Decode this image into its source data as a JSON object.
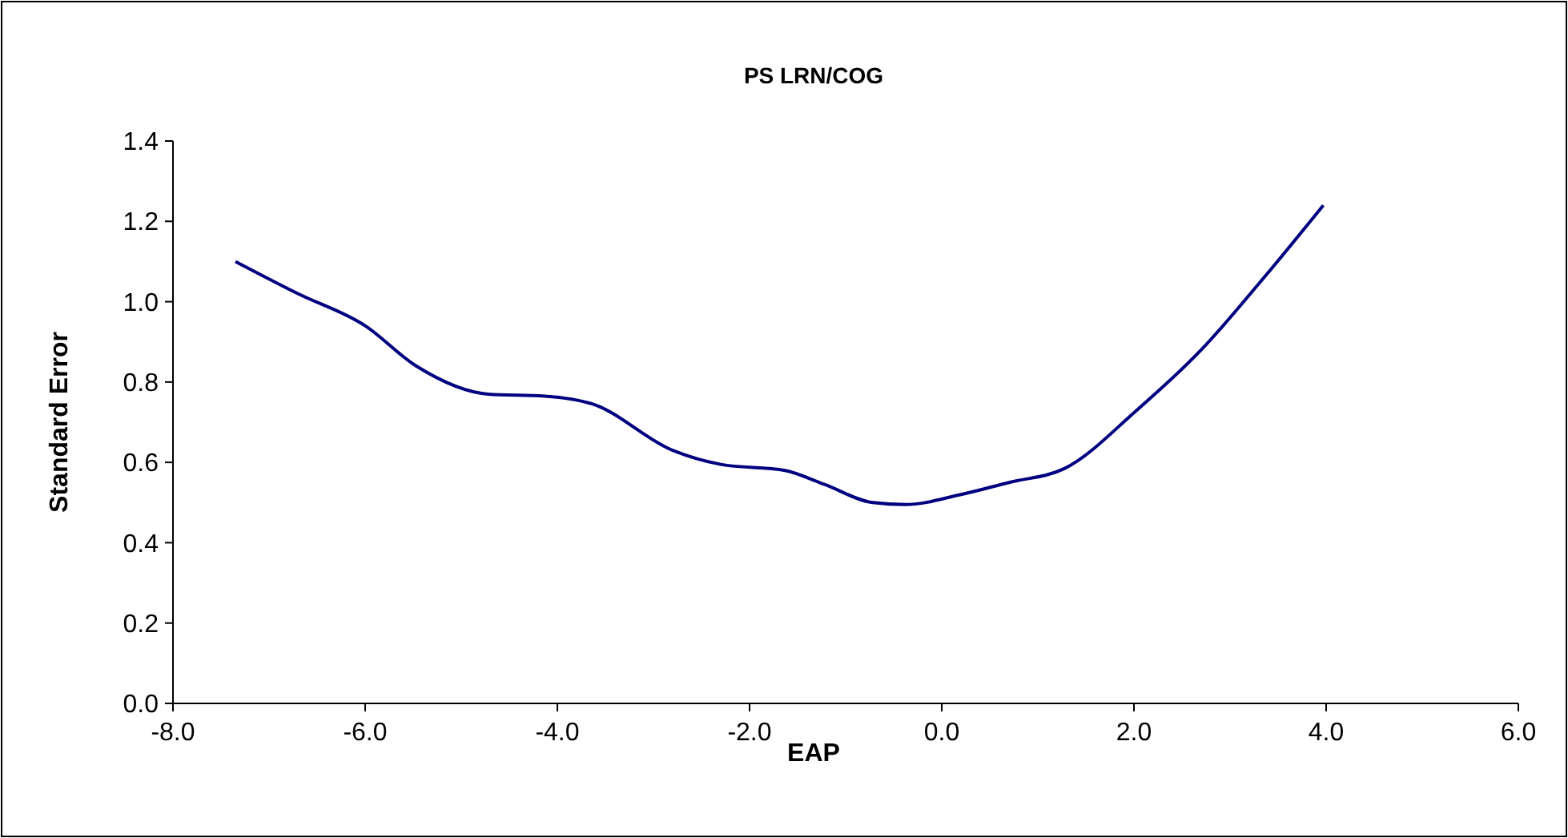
{
  "chart_data": {
    "type": "line",
    "title": "PS LRN/COG",
    "xlabel": "EAP",
    "ylabel": "Standard Error",
    "x": [
      -7.35,
      -6.7,
      -6.0,
      -5.47,
      -4.72,
      -4.13,
      -3.63,
      -2.8,
      -2.3,
      -1.63,
      -1.22,
      -0.72,
      -0.38,
      0.2,
      0.7,
      1.28,
      2.03,
      2.7,
      3.37,
      3.97
    ],
    "series": [
      {
        "color": "#000080",
        "values": [
          1.1,
          1.02,
          0.94,
          0.84,
          0.77,
          0.765,
          0.745,
          0.63,
          0.595,
          0.58,
          0.545,
          0.5,
          0.495,
          0.52,
          0.55,
          0.585,
          0.73,
          0.88,
          1.065,
          1.24
        ]
      }
    ],
    "xlim": [
      -8,
      6
    ],
    "xticks": [
      {
        "value": -8,
        "label": "-8.0"
      },
      {
        "value": -6,
        "label": "-6.0"
      },
      {
        "value": -4,
        "label": "-4.0"
      },
      {
        "value": -2,
        "label": "-2.0"
      },
      {
        "value": 0,
        "label": "0.0"
      },
      {
        "value": 2,
        "label": "2.0"
      },
      {
        "value": 4,
        "label": "4.0"
      },
      {
        "value": 6,
        "label": "6.0"
      }
    ],
    "ylim": [
      0,
      1.4
    ],
    "yticks": [
      {
        "value": 0,
        "label": "0.0"
      },
      {
        "value": 0.2,
        "label": "0.2"
      },
      {
        "value": 0.4,
        "label": "0.4"
      },
      {
        "value": 0.6,
        "label": "0.6"
      },
      {
        "value": 0.8,
        "label": "0.8"
      },
      {
        "value": 1,
        "label": "1.0"
      },
      {
        "value": 1.2,
        "label": "1.2"
      },
      {
        "value": 1.4,
        "label": "1.4"
      }
    ],
    "grid": false,
    "marker": "none",
    "line_style": "solid"
  }
}
